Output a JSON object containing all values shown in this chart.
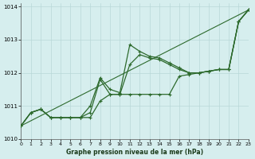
{
  "background_color": "#d6eeee",
  "grid_color": "#b8d8d8",
  "line_color": "#2d6a2d",
  "xlim": [
    0,
    23
  ],
  "ylim": [
    1010.0,
    1014.1
  ],
  "yticks": [
    1010,
    1011,
    1012,
    1013,
    1014
  ],
  "xticks": [
    0,
    1,
    2,
    3,
    4,
    5,
    6,
    7,
    8,
    9,
    10,
    11,
    12,
    13,
    14,
    15,
    16,
    17,
    18,
    19,
    20,
    21,
    22,
    23
  ],
  "xlabel": "Graphe pression niveau de la mer (hPa)",
  "line_straight": {
    "x": [
      0,
      23
    ],
    "y": [
      1010.4,
      1013.9
    ]
  },
  "line_A": {
    "x": [
      0,
      1,
      2,
      3,
      4,
      5,
      6,
      7,
      8,
      9,
      10,
      11,
      12,
      13,
      14,
      15,
      16,
      17,
      18,
      19,
      20,
      21,
      22,
      23
    ],
    "y": [
      1010.4,
      1010.8,
      1010.9,
      1010.65,
      1010.65,
      1010.65,
      1010.65,
      1010.65,
      1011.15,
      1011.35,
      1011.35,
      1011.35,
      1011.35,
      1011.35,
      1011.35,
      1011.35,
      1011.9,
      1011.95,
      1012.0,
      1012.05,
      1012.1,
      1012.1,
      1013.55,
      1013.9
    ]
  },
  "line_B": {
    "x": [
      0,
      1,
      2,
      3,
      4,
      5,
      6,
      7,
      8,
      9,
      10,
      11,
      12,
      13,
      14,
      15,
      16,
      17,
      18,
      19,
      20,
      21,
      22,
      23
    ],
    "y": [
      1010.4,
      1010.8,
      1010.9,
      1010.65,
      1010.65,
      1010.65,
      1010.65,
      1011.0,
      1011.85,
      1011.5,
      1011.4,
      1012.85,
      1012.65,
      1012.5,
      1012.45,
      1012.3,
      1012.15,
      1012.0,
      1012.0,
      1012.05,
      1012.1,
      1012.1,
      1013.55,
      1013.9
    ]
  },
  "line_C": {
    "x": [
      0,
      1,
      2,
      3,
      4,
      5,
      6,
      7,
      8,
      9,
      10,
      11,
      12,
      13,
      14,
      15,
      16,
      17,
      18,
      19,
      20,
      21,
      22,
      23
    ],
    "y": [
      1010.4,
      1010.8,
      1010.9,
      1010.65,
      1010.65,
      1010.65,
      1010.65,
      1010.8,
      1011.8,
      1011.35,
      1011.35,
      1012.25,
      1012.55,
      1012.45,
      1012.4,
      1012.25,
      1012.1,
      1012.0,
      1012.0,
      1012.05,
      1012.1,
      1012.1,
      1013.55,
      1013.9
    ]
  }
}
